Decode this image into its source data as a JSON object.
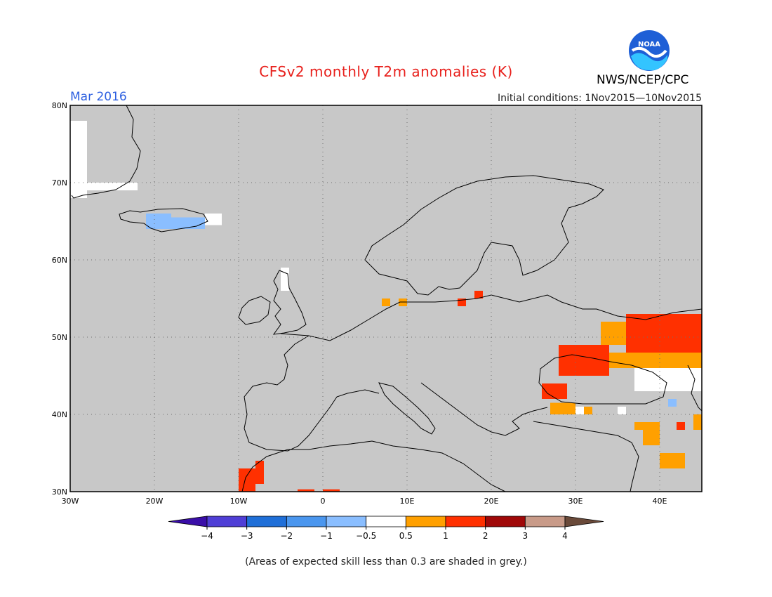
{
  "header": {
    "title": "CFSv2 monthly T2m anomalies (K)",
    "month": "Mar 2016",
    "initial_conditions": "Initial conditions: 1Nov2015—10Nov2015",
    "agency": "NWS/NCEP/CPC",
    "logo_text": "NOAA"
  },
  "map": {
    "lon_range": [
      -30,
      45
    ],
    "lat_range": [
      30,
      80
    ],
    "background_color": "#c8c8c8",
    "lat_labels": [
      "30N",
      "40N",
      "50N",
      "60N",
      "70N",
      "80N"
    ],
    "lon_labels": [
      "30W",
      "20W",
      "10W",
      "0",
      "10E",
      "20E",
      "30E",
      "40E"
    ],
    "anomaly_cells": [
      {
        "lon": -30,
        "lat": 68,
        "w": 2,
        "h": 10,
        "color": "#ffffff"
      },
      {
        "lon": -28,
        "lat": 69,
        "w": 6,
        "h": 1,
        "color": "#ffffff"
      },
      {
        "lon": -21,
        "lat": 64,
        "w": 3,
        "h": 2,
        "color": "#8abeff"
      },
      {
        "lon": -18,
        "lat": 64,
        "w": 4,
        "h": 1.5,
        "color": "#8abeff"
      },
      {
        "lon": -14,
        "lat": 64.5,
        "w": 2,
        "h": 1.5,
        "color": "#ffffff"
      },
      {
        "lon": -5,
        "lat": 56,
        "w": 1,
        "h": 3,
        "color": "#ffffff"
      },
      {
        "lon": 7,
        "lat": 54,
        "w": 1,
        "h": 1,
        "color": "#ffa000"
      },
      {
        "lon": 9,
        "lat": 54,
        "w": 1,
        "h": 1,
        "color": "#ffa000"
      },
      {
        "lon": 16,
        "lat": 54,
        "w": 1,
        "h": 1,
        "color": "#ff3000"
      },
      {
        "lon": 18,
        "lat": 55,
        "w": 1,
        "h": 1,
        "color": "#ff3000"
      },
      {
        "lon": 36,
        "lat": 48,
        "w": 9,
        "h": 5,
        "color": "#ff3000"
      },
      {
        "lon": 33,
        "lat": 49,
        "w": 3,
        "h": 3,
        "color": "#ffa000"
      },
      {
        "lon": 28,
        "lat": 45,
        "w": 6,
        "h": 4,
        "color": "#ff3000"
      },
      {
        "lon": 34,
        "lat": 46,
        "w": 11,
        "h": 2,
        "color": "#ffa000"
      },
      {
        "lon": 37,
        "lat": 43,
        "w": 8,
        "h": 3,
        "color": "#ffffff"
      },
      {
        "lon": 26,
        "lat": 42,
        "w": 3,
        "h": 2,
        "color": "#ff3000"
      },
      {
        "lon": 27,
        "lat": 40,
        "w": 3,
        "h": 1.5,
        "color": "#ffa000"
      },
      {
        "lon": 30,
        "lat": 40,
        "w": 1,
        "h": 1,
        "color": "#ffffff"
      },
      {
        "lon": 31,
        "lat": 40,
        "w": 1,
        "h": 1,
        "color": "#ffa000"
      },
      {
        "lon": 38,
        "lat": 36,
        "w": 2,
        "h": 2,
        "color": "#ffa000"
      },
      {
        "lon": 37,
        "lat": 38,
        "w": 3,
        "h": 1,
        "color": "#ffa000"
      },
      {
        "lon": 40,
        "lat": 33,
        "w": 3,
        "h": 2,
        "color": "#ffa000"
      },
      {
        "lon": 42,
        "lat": 38,
        "w": 1,
        "h": 1,
        "color": "#ff3000"
      },
      {
        "lon": 44,
        "lat": 38,
        "w": 1,
        "h": 2,
        "color": "#ffa000"
      },
      {
        "lon": 41,
        "lat": 41,
        "w": 1,
        "h": 1,
        "color": "#8abeff"
      },
      {
        "lon": 35,
        "lat": 40,
        "w": 1,
        "h": 1,
        "color": "#ffffff"
      },
      {
        "lon": -10,
        "lat": 30,
        "w": 2,
        "h": 3,
        "color": "#ff3000"
      },
      {
        "lon": -8,
        "lat": 31,
        "w": 1,
        "h": 3,
        "color": "#ff3000"
      },
      {
        "lon": -3,
        "lat": 30,
        "w": 2,
        "h": 0.3,
        "color": "#ff3000"
      },
      {
        "lon": 0,
        "lat": 30,
        "w": 2,
        "h": 0.3,
        "color": "#ff3000"
      }
    ]
  },
  "legend": {
    "colors": [
      "#3a0ea8",
      "#4f3ed6",
      "#1f6fd8",
      "#4a96ee",
      "#8abeff",
      "#ffffff",
      "#ffa000",
      "#ff3000",
      "#a00808",
      "#c89a88",
      "#6a4a3a"
    ],
    "labels": [
      "−4",
      "−3",
      "−2",
      "−1",
      "−0.5",
      "0.5",
      "1",
      "2",
      "3",
      "4"
    ]
  },
  "footnote": "(Areas of expected skill less than 0.3 are shaded in grey.)"
}
